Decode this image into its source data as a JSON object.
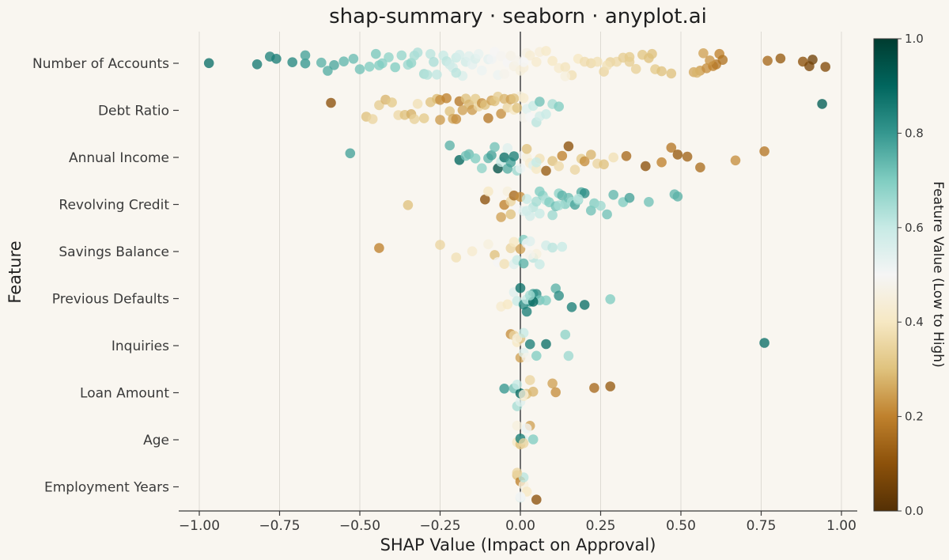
{
  "chart_data": {
    "type": "scatter",
    "subtype": "beeswarm",
    "title": "shap-summary · seaborn · anyplot.ai",
    "xlabel": "SHAP Value (Impact on Approval)",
    "ylabel": "Feature",
    "xlim": [
      -1.05,
      1.05
    ],
    "x_ticks": [
      -1.0,
      -0.75,
      -0.5,
      -0.25,
      0.0,
      0.25,
      0.5,
      0.75,
      1.0
    ],
    "x_tick_labels": [
      "−1.00",
      "−0.75",
      "−0.50",
      "−0.25",
      "0.00",
      "0.25",
      "0.50",
      "0.75",
      "1.00"
    ],
    "grid": "vertical",
    "zero_line": true,
    "colorbar": {
      "label": "Feature Value (Low to High)",
      "range": [
        0,
        1
      ],
      "ticks": [
        "0.0",
        "0.2",
        "0.4",
        "0.6",
        "0.8",
        "1.0"
      ],
      "colormap": [
        "#543005",
        "#8c510a",
        "#bf812d",
        "#dfc27d",
        "#f6e8c3",
        "#f5f5f5",
        "#c7eae5",
        "#80cdc1",
        "#35978f",
        "#01665e",
        "#003c30"
      ]
    },
    "features": [
      {
        "name": "Number of Accounts",
        "shap": [
          -0.97,
          -0.82,
          -0.78,
          -0.76,
          -0.71,
          -0.67,
          -0.67,
          -0.6,
          -0.58,
          -0.55,
          -0.52,
          -0.5,
          -0.47,
          -0.45,
          -0.43,
          -0.41,
          -0.39,
          -0.37,
          -0.35,
          -0.34,
          -0.33,
          -0.32,
          -0.3,
          -0.29,
          -0.28,
          -0.27,
          -0.26,
          -0.24,
          -0.23,
          -0.22,
          -0.21,
          -0.2,
          -0.19,
          -0.18,
          -0.17,
          -0.16,
          -0.15,
          -0.14,
          -0.13,
          -0.12,
          -0.1,
          -0.09,
          -0.08,
          -0.07,
          -0.06,
          -0.05,
          -0.04,
          -0.03,
          -0.02,
          -0.01,
          0.0,
          0.01,
          0.02,
          0.03,
          0.05,
          0.06,
          0.08,
          0.1,
          0.12,
          0.14,
          0.16,
          0.18,
          0.2,
          0.22,
          0.24,
          0.26,
          0.28,
          0.3,
          0.32,
          0.34,
          0.36,
          0.38,
          0.4,
          0.42,
          0.44,
          0.47,
          0.54,
          0.56,
          0.58,
          0.6,
          0.61,
          0.62,
          0.63,
          0.77,
          0.81,
          0.88,
          0.9,
          0.95,
          0.91,
          0.55,
          0.57,
          0.59,
          0.27,
          0.34,
          0.41,
          0.14,
          0.01,
          -0.2,
          -0.44,
          -0.62
        ],
        "value": [
          0.88,
          0.86,
          0.84,
          0.85,
          0.83,
          0.8,
          0.78,
          0.76,
          0.77,
          0.74,
          0.73,
          0.72,
          0.7,
          0.71,
          0.69,
          0.68,
          0.7,
          0.67,
          0.66,
          0.68,
          0.65,
          0.64,
          0.66,
          0.63,
          0.62,
          0.64,
          0.61,
          0.6,
          0.62,
          0.59,
          0.58,
          0.6,
          0.57,
          0.56,
          0.58,
          0.55,
          0.54,
          0.56,
          0.53,
          0.52,
          0.54,
          0.51,
          0.5,
          0.52,
          0.49,
          0.48,
          0.5,
          0.47,
          0.46,
          0.48,
          0.45,
          0.44,
          0.46,
          0.43,
          0.42,
          0.44,
          0.41,
          0.4,
          0.42,
          0.39,
          0.38,
          0.4,
          0.37,
          0.36,
          0.38,
          0.35,
          0.34,
          0.36,
          0.33,
          0.32,
          0.34,
          0.31,
          0.3,
          0.32,
          0.3,
          0.3,
          0.26,
          0.24,
          0.22,
          0.2,
          0.18,
          0.2,
          0.17,
          0.15,
          0.12,
          0.1,
          0.07,
          0.08,
          0.05,
          0.28,
          0.25,
          0.23,
          0.38,
          0.33,
          0.3,
          0.45,
          0.5,
          0.62,
          0.7,
          0.75
        ]
      },
      {
        "name": "Debt Ratio",
        "shap": [
          -0.59,
          -0.48,
          -0.46,
          -0.44,
          -0.42,
          -0.4,
          -0.38,
          -0.36,
          -0.34,
          -0.33,
          -0.32,
          -0.3,
          -0.28,
          -0.26,
          -0.25,
          -0.23,
          -0.22,
          -0.21,
          -0.2,
          -0.19,
          -0.18,
          -0.17,
          -0.16,
          -0.15,
          -0.14,
          -0.13,
          -0.12,
          -0.11,
          -0.1,
          -0.09,
          -0.08,
          -0.07,
          -0.06,
          -0.05,
          -0.04,
          -0.03,
          -0.02,
          -0.01,
          0.0,
          0.01,
          0.02,
          0.03,
          0.04,
          0.05,
          0.06,
          0.08,
          0.1,
          0.12,
          0.94,
          -0.25,
          -0.02,
          0.01,
          0.06
        ],
        "value": [
          0.1,
          0.3,
          0.35,
          0.33,
          0.28,
          0.32,
          0.36,
          0.3,
          0.27,
          0.34,
          0.38,
          0.32,
          0.3,
          0.29,
          0.22,
          0.2,
          0.3,
          0.26,
          0.22,
          0.18,
          0.25,
          0.3,
          0.28,
          0.24,
          0.32,
          0.35,
          0.22,
          0.3,
          0.18,
          0.25,
          0.3,
          0.33,
          0.22,
          0.28,
          0.35,
          0.25,
          0.4,
          0.3,
          0.45,
          0.48,
          0.55,
          0.5,
          0.6,
          0.62,
          0.58,
          0.6,
          0.65,
          0.7,
          0.92,
          0.24,
          0.3,
          0.42,
          0.72
        ]
      },
      {
        "name": "Annual Income",
        "shap": [
          -0.53,
          -0.22,
          -0.19,
          -0.17,
          -0.16,
          -0.14,
          -0.12,
          -0.1,
          -0.09,
          -0.08,
          -0.07,
          -0.06,
          -0.05,
          -0.04,
          -0.03,
          -0.02,
          -0.01,
          0.0,
          0.01,
          0.02,
          0.03,
          0.04,
          0.05,
          0.06,
          0.08,
          0.1,
          0.12,
          0.13,
          0.15,
          0.17,
          0.19,
          0.2,
          0.22,
          0.24,
          0.26,
          0.29,
          0.33,
          0.39,
          0.44,
          0.47,
          0.49,
          0.52,
          0.56,
          0.67,
          0.76,
          0.05,
          -0.04,
          0.02
        ],
        "value": [
          0.78,
          0.75,
          0.9,
          0.72,
          0.73,
          0.7,
          0.68,
          0.74,
          0.78,
          0.72,
          0.95,
          0.6,
          0.88,
          0.76,
          0.78,
          0.85,
          0.66,
          0.52,
          0.5,
          0.45,
          0.42,
          0.55,
          0.4,
          0.38,
          0.12,
          0.3,
          0.36,
          0.2,
          0.1,
          0.35,
          0.32,
          0.22,
          0.28,
          0.35,
          0.3,
          0.38,
          0.15,
          0.1,
          0.2,
          0.18,
          0.12,
          0.14,
          0.16,
          0.22,
          0.18,
          0.6,
          0.55,
          0.3
        ]
      },
      {
        "name": "Revolving Credit",
        "shap": [
          -0.35,
          -0.11,
          -0.1,
          -0.06,
          -0.05,
          -0.04,
          -0.03,
          -0.02,
          -0.01,
          0.0,
          0.01,
          0.02,
          0.03,
          0.04,
          0.05,
          0.06,
          0.07,
          0.08,
          0.09,
          0.1,
          0.11,
          0.12,
          0.13,
          0.14,
          0.15,
          0.16,
          0.17,
          0.18,
          0.19,
          0.2,
          0.22,
          0.23,
          0.25,
          0.27,
          0.29,
          0.32,
          0.34,
          0.4,
          0.48,
          0.49,
          0.02,
          -0.03,
          0.06,
          0.12,
          0.18
        ],
        "value": [
          0.3,
          0.1,
          0.4,
          0.25,
          0.2,
          0.45,
          0.35,
          0.15,
          0.5,
          0.22,
          0.55,
          0.6,
          0.58,
          0.62,
          0.65,
          0.6,
          0.68,
          0.63,
          0.7,
          0.66,
          0.72,
          0.68,
          0.75,
          0.7,
          0.73,
          0.65,
          0.78,
          0.68,
          0.76,
          0.82,
          0.72,
          0.7,
          0.66,
          0.72,
          0.74,
          0.7,
          0.78,
          0.72,
          0.74,
          0.75,
          0.58,
          0.3,
          0.7,
          0.65,
          0.62
        ]
      },
      {
        "name": "Savings Balance",
        "shap": [
          -0.44,
          -0.25,
          -0.2,
          -0.15,
          -0.1,
          -0.08,
          -0.07,
          -0.05,
          -0.03,
          -0.02,
          -0.01,
          0.0,
          0.01,
          0.02,
          0.03,
          0.04,
          0.05,
          0.06,
          0.08,
          0.1,
          0.13,
          -0.02,
          0.01,
          0.03
        ],
        "value": [
          0.2,
          0.35,
          0.38,
          0.42,
          0.45,
          0.3,
          0.5,
          0.38,
          0.35,
          0.55,
          0.6,
          0.25,
          0.7,
          0.5,
          0.55,
          0.62,
          0.45,
          0.6,
          0.58,
          0.62,
          0.6,
          0.4,
          0.75,
          0.48
        ]
      },
      {
        "name": "Previous Defaults",
        "shap": [
          -0.06,
          -0.04,
          -0.02,
          -0.01,
          0.0,
          0.01,
          0.02,
          0.03,
          0.04,
          0.05,
          0.06,
          0.08,
          0.11,
          0.12,
          0.16,
          0.2,
          0.28,
          0.02,
          0.04,
          0.03
        ],
        "value": [
          0.42,
          0.4,
          0.55,
          0.6,
          0.88,
          0.82,
          0.85,
          0.8,
          0.78,
          0.82,
          0.72,
          0.7,
          0.75,
          0.82,
          0.85,
          0.88,
          0.7,
          0.6,
          0.9,
          0.65
        ]
      },
      {
        "name": "Inquiries",
        "shap": [
          -0.03,
          -0.02,
          -0.01,
          0.0,
          0.01,
          0.02,
          0.03,
          0.05,
          0.08,
          0.14,
          0.15,
          0.76,
          0.0,
          -0.01,
          0.01
        ],
        "value": [
          0.22,
          0.35,
          0.4,
          0.25,
          0.55,
          0.48,
          0.85,
          0.7,
          0.88,
          0.68,
          0.66,
          0.88,
          0.3,
          0.45,
          0.6
        ]
      },
      {
        "name": "Loan Amount",
        "shap": [
          -0.05,
          -0.02,
          -0.01,
          0.0,
          0.01,
          0.02,
          0.03,
          0.04,
          0.1,
          0.11,
          0.23,
          0.28,
          0.0,
          0.01,
          -0.01
        ],
        "value": [
          0.8,
          0.72,
          0.65,
          0.55,
          0.4,
          0.3,
          0.35,
          0.28,
          0.25,
          0.22,
          0.15,
          0.12,
          0.9,
          0.45,
          0.6
        ]
      },
      {
        "name": "Age",
        "shap": [
          -0.01,
          0.0,
          0.01,
          0.02,
          0.03,
          0.04,
          0.0,
          -0.01,
          0.01,
          0.02
        ],
        "value": [
          0.4,
          0.3,
          0.55,
          0.6,
          0.25,
          0.7,
          0.85,
          0.45,
          0.35,
          0.5
        ]
      },
      {
        "name": "Employment Years",
        "shap": [
          -0.01,
          0.0,
          0.01,
          0.02,
          0.05,
          0.0,
          0.01,
          -0.01,
          0.0
        ],
        "value": [
          0.3,
          0.2,
          0.45,
          0.4,
          0.1,
          0.55,
          0.62,
          0.35,
          0.5
        ]
      }
    ]
  }
}
